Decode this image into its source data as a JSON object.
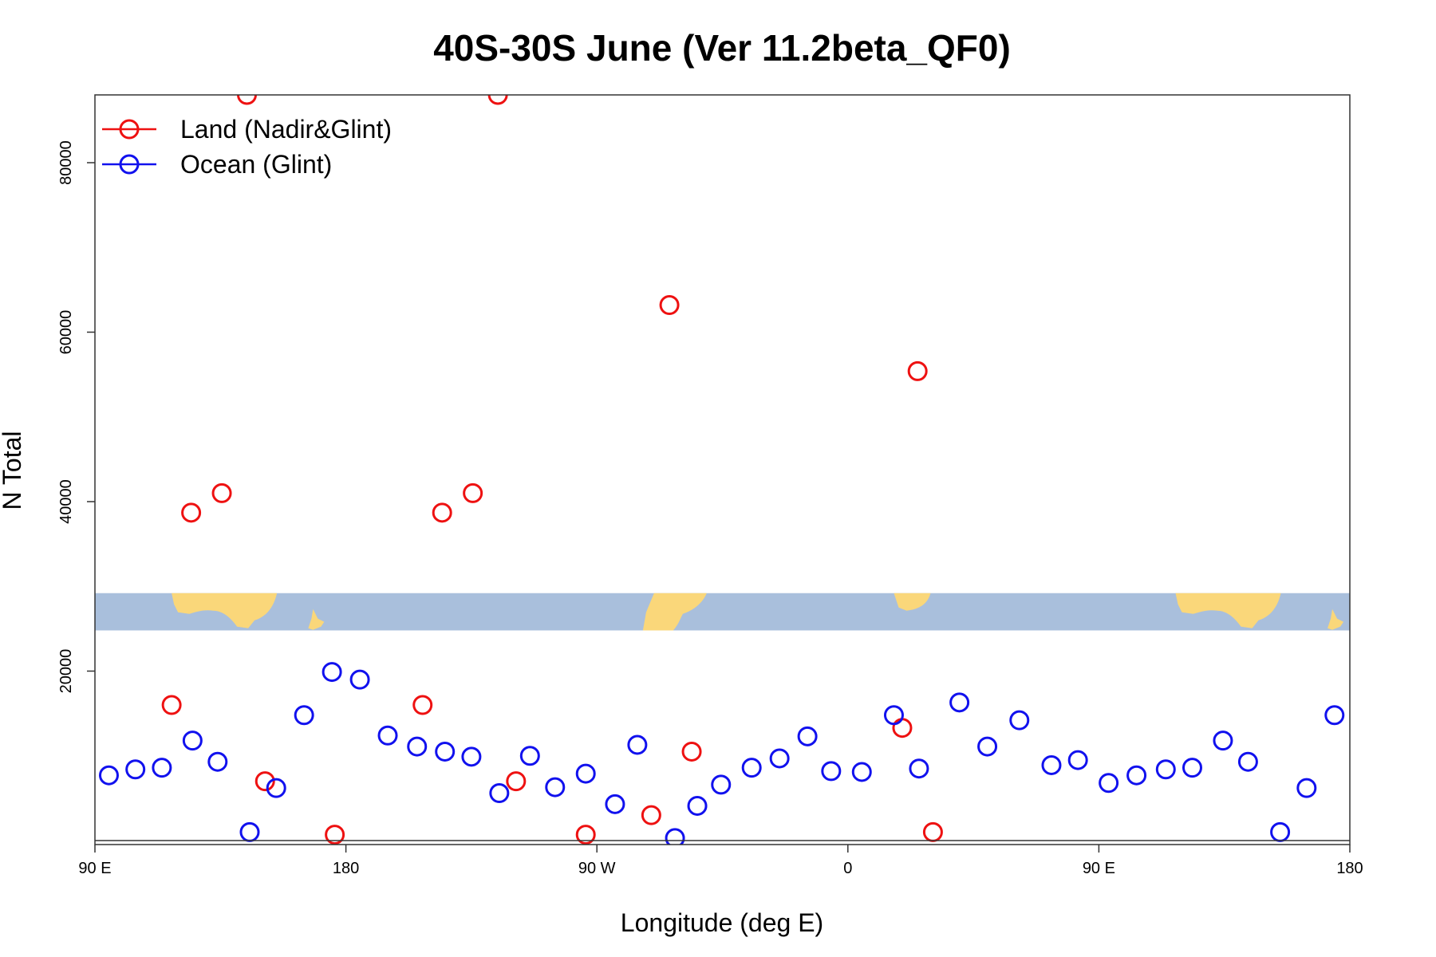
{
  "chart_data": {
    "type": "scatter",
    "title": "40S-30S June (Ver 11.2beta_QF0)",
    "xlabel": "Longitude (deg E)",
    "ylabel": "N Total",
    "xlim": [
      90,
      540
    ],
    "ylim": [
      0,
      88000
    ],
    "x_ticks": [
      {
        "value": 90,
        "label": "90 E"
      },
      {
        "value": 180,
        "label": "180"
      },
      {
        "value": 270,
        "label": "90 W"
      },
      {
        "value": 360,
        "label": "0"
      },
      {
        "value": 450,
        "label": "90 E"
      },
      {
        "value": 540,
        "label": "180"
      }
    ],
    "y_ticks": [
      {
        "value": 20000,
        "label": "20000"
      },
      {
        "value": 40000,
        "label": "40000"
      },
      {
        "value": 60000,
        "label": "60000"
      },
      {
        "value": 80000,
        "label": "80000"
      }
    ],
    "grid": false,
    "legend_position": "top-left",
    "map_strip": {
      "y_range": [
        24800,
        29200
      ],
      "ocean_color": "#a9bfdc",
      "land_color": "#fad77a"
    },
    "series": [
      {
        "name": "Land (Nadir&Glint)",
        "color": "#ee1111",
        "points": [
          [
            117.5,
            16000
          ],
          [
            124.5,
            38700
          ],
          [
            135.5,
            41000
          ],
          [
            144.5,
            88000
          ],
          [
            151,
            7000
          ],
          [
            176,
            700
          ],
          [
            289.5,
            3000
          ],
          [
            296,
            63200
          ],
          [
            304,
            10500
          ],
          [
            379.5,
            13300
          ],
          [
            385,
            55400
          ],
          [
            390.5,
            1000
          ],
          [
            207.5,
            16000
          ],
          [
            214.5,
            38700
          ],
          [
            225.5,
            41000
          ],
          [
            234.5,
            88000
          ],
          [
            241,
            7000
          ],
          [
            266,
            700
          ]
        ]
      },
      {
        "name": "Ocean (Glint)",
        "color": "#1111ee",
        "points": [
          [
            95,
            7700
          ],
          [
            104.5,
            8400
          ],
          [
            114,
            8600
          ],
          [
            125,
            11800
          ],
          [
            134,
            9300
          ],
          [
            145.5,
            1000
          ],
          [
            155,
            6200
          ],
          [
            165,
            14800
          ],
          [
            175,
            19900
          ],
          [
            185,
            19000
          ],
          [
            195,
            12400
          ],
          [
            205.5,
            11100
          ],
          [
            215.5,
            10500
          ],
          [
            225,
            9900
          ],
          [
            235,
            5600
          ],
          [
            246,
            10000
          ],
          [
            255,
            6300
          ],
          [
            266,
            7900
          ],
          [
            276.5,
            4300
          ],
          [
            284.5,
            11300
          ],
          [
            298,
            300
          ],
          [
            306,
            4100
          ],
          [
            314.5,
            6600
          ],
          [
            325.5,
            8600
          ],
          [
            335.5,
            9700
          ],
          [
            345.5,
            12300
          ],
          [
            354,
            8200
          ],
          [
            365,
            8100
          ],
          [
            376.5,
            14800
          ],
          [
            385.5,
            8500
          ],
          [
            400,
            16300
          ],
          [
            410,
            11100
          ],
          [
            421.5,
            14200
          ],
          [
            433,
            8900
          ],
          [
            442.5,
            9500
          ],
          [
            453.5,
            6800
          ],
          [
            463.5,
            7700
          ],
          [
            474,
            8400
          ],
          [
            483.5,
            8600
          ],
          [
            494.5,
            11800
          ],
          [
            503.5,
            9300
          ],
          [
            515,
            1000
          ],
          [
            524.5,
            6200
          ],
          [
            534.5,
            14800
          ]
        ]
      }
    ]
  }
}
